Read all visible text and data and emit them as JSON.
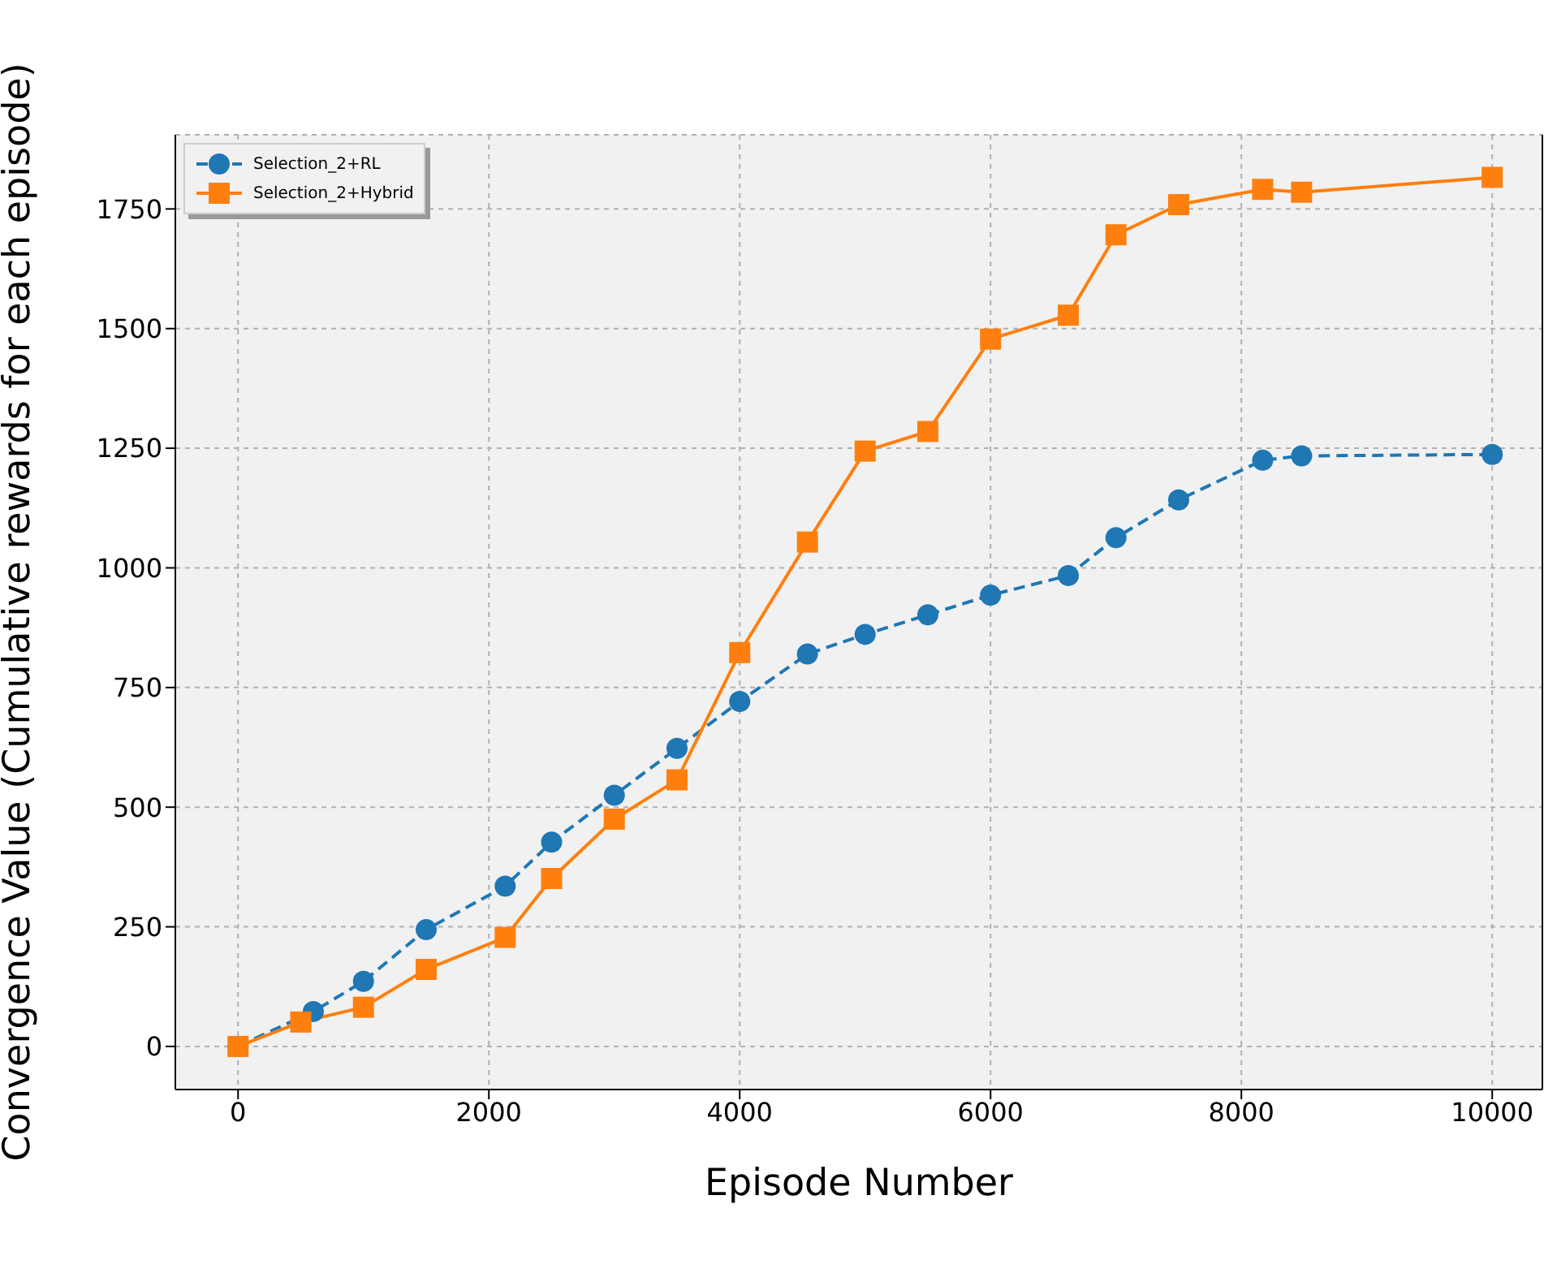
{
  "chart_data": {
    "type": "line",
    "xlabel": "Episode Number",
    "ylabel": "Convergence Value (Cumulative rewards for each episode)",
    "xlim": [
      -500,
      10400
    ],
    "xticks": [
      0,
      2000,
      4000,
      6000,
      8000,
      10000
    ],
    "ylim": [
      -90,
      1905
    ],
    "yticks": [
      0,
      250,
      500,
      750,
      1000,
      1250,
      1500,
      1750
    ],
    "grid": true,
    "legend": "top left",
    "series": [
      {
        "name": "Selection_2+RL",
        "color": "#1f77b4",
        "marker": "circle",
        "line_style": "dashed",
        "x": [
          0,
          600,
          1000,
          1500,
          2130,
          2500,
          3000,
          3500,
          4000,
          4540,
          5000,
          5500,
          6000,
          6620,
          7000,
          7500,
          8170,
          8480,
          10000
        ],
        "values": [
          0,
          73,
          136,
          244,
          335,
          427,
          525,
          623,
          721,
          820,
          861,
          902,
          943,
          984,
          1063,
          1142,
          1225,
          1234,
          1237
        ]
      },
      {
        "name": "Selection_2+Hybrid",
        "color": "#ff7f0e",
        "marker": "square",
        "line_style": "solid",
        "x": [
          0,
          500,
          1000,
          1500,
          2130,
          2500,
          3000,
          3500,
          4000,
          4540,
          5000,
          5500,
          6000,
          6620,
          7000,
          7500,
          8170,
          8480,
          10000
        ],
        "values": [
          0,
          51,
          82,
          161,
          228,
          351,
          475,
          557,
          823,
          1054,
          1244,
          1285,
          1478,
          1528,
          1696,
          1759,
          1791,
          1785,
          1816
        ]
      }
    ]
  }
}
